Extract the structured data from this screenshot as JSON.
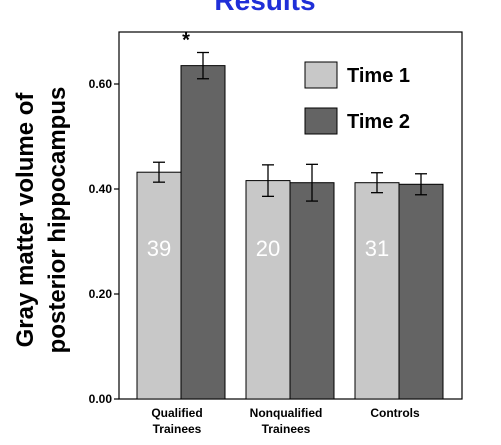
{
  "chart_data": {
    "type": "bar",
    "title": "Results",
    "ylabel_lines": [
      "Gray matter volume of",
      "posterior hippocampus"
    ],
    "xlabel": "",
    "ylim": [
      0,
      0.7
    ],
    "yticks": [
      "0.00",
      "0.20",
      "0.40",
      "0.60"
    ],
    "ytick_values": [
      0.0,
      0.2,
      0.4,
      0.6
    ],
    "categories": [
      [
        "Qualified",
        "Trainees"
      ],
      [
        "Nonqualified",
        "Trainees"
      ],
      [
        "Controls"
      ]
    ],
    "sample_sizes": [
      "39",
      "20",
      "31"
    ],
    "significance_marker": "*",
    "significance_category": 0,
    "significance_series": 1,
    "legend_position": "top-right",
    "series": [
      {
        "name": "Time 1",
        "color": "#c8c8c8",
        "values": [
          0.432,
          0.416,
          0.412
        ],
        "error": [
          0.019,
          0.03,
          0.019
        ]
      },
      {
        "name": "Time 2",
        "color": "#646464",
        "values": [
          0.635,
          0.412,
          0.409
        ],
        "error": [
          0.025,
          0.035,
          0.02
        ]
      }
    ]
  }
}
